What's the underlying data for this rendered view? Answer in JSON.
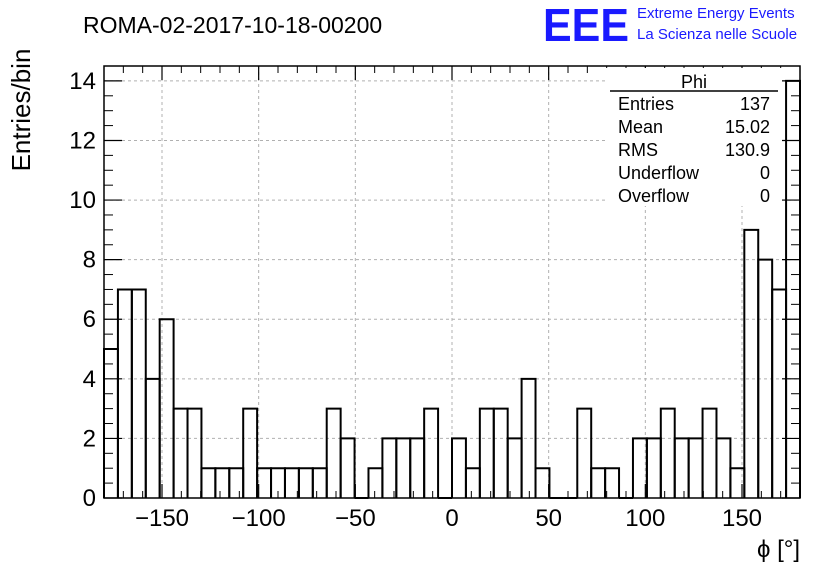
{
  "title": "ROMA-02-2017-10-18-00200",
  "logo": {
    "text": "EEE",
    "line1": "Extreme Energy Events",
    "line2": "La Scienza nelle Scuole",
    "color": "#1a1aff"
  },
  "stats": {
    "name": "Phi",
    "rows": [
      {
        "label": "Entries",
        "value": "137"
      },
      {
        "label": "Mean",
        "value": "15.02"
      },
      {
        "label": "RMS",
        "value": "130.9"
      },
      {
        "label": "Underflow",
        "value": "0"
      },
      {
        "label": "Overflow",
        "value": "0"
      }
    ]
  },
  "chart_data": {
    "type": "histogram",
    "title": "ROMA-02-2017-10-18-00200",
    "xlabel": "ϕ [°]",
    "ylabel": "Entries/bin",
    "xlim": [
      -180,
      180
    ],
    "ylim": [
      0,
      14.5
    ],
    "grid": true,
    "bin_width": 7.2,
    "xticks": [
      -150,
      -100,
      -50,
      0,
      50,
      100,
      150
    ],
    "xtick_labels": [
      "−150",
      "−100",
      "−50",
      "0",
      "50",
      "100",
      "150"
    ],
    "yticks": [
      0,
      2,
      4,
      6,
      8,
      10,
      12,
      14
    ],
    "ytick_labels": [
      "0",
      "2",
      "4",
      "6",
      "8",
      "10",
      "12",
      "14"
    ],
    "counts": [
      5,
      7,
      7,
      4,
      6,
      3,
      3,
      1,
      1,
      1,
      3,
      1,
      1,
      1,
      1,
      1,
      3,
      2,
      0,
      1,
      2,
      2,
      2,
      3,
      0,
      2,
      1,
      3,
      3,
      2,
      4,
      1,
      0,
      0,
      3,
      1,
      1,
      0,
      2,
      2,
      3,
      2,
      2,
      3,
      2,
      1,
      9,
      8,
      7,
      14
    ]
  }
}
